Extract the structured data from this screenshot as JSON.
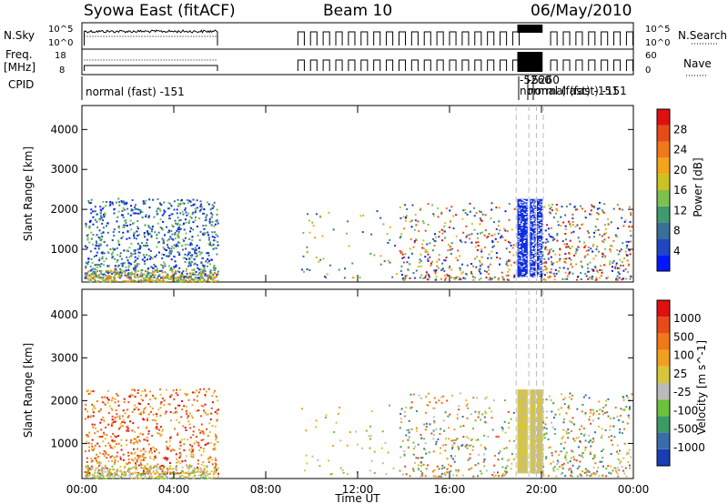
{
  "header": {
    "station": "Syowa East (fitACF)",
    "beam": "Beam 10",
    "date": "06/May/2010"
  },
  "strip": {
    "nsky_label": "N.Sky",
    "nsky_ticks": [
      "10^5",
      "10^0"
    ],
    "nsearch_label": "N.Search",
    "nsearch_ticks": [
      "10^5",
      "10^0"
    ],
    "freq_label_1": "Freq.",
    "freq_label_2": "[MHz]",
    "freq_ticks": [
      "18",
      "8"
    ],
    "nave_label": "Nave",
    "nave_ticks": [
      "60",
      "0"
    ],
    "cpid_label": "CPID",
    "cpid_main": "normal (fast) -151",
    "cpid_overlap_1": "-5260",
    "cpid_overlap_2": "-5260",
    "cpid_overlap_3": "normal (fast) -151",
    "cpid_overlap_4": "normal (fast) -151"
  },
  "chart_data": [
    {
      "type": "heatmap",
      "panel": "power",
      "ylabel": "Slant Range [km]",
      "xlabel": "Time UT",
      "y_ticks": [
        "4000",
        "3000",
        "2000",
        "1000"
      ],
      "x_ticks": [
        "00:00",
        "04:00",
        "08:00",
        "12:00",
        "16:00",
        "20:00",
        "00:00"
      ],
      "ylim": [
        180,
        4600
      ],
      "xlim": [
        0,
        24
      ],
      "colorbar_label": "Power [dB]",
      "colorbar_ticks": [
        "28",
        "24",
        "20",
        "16",
        "12",
        "8",
        "4"
      ],
      "colors": [
        "#0018ff",
        "#1f48c0",
        "#3a6f96",
        "#3f9a70",
        "#7cc04e",
        "#c9c222",
        "#f2a51a",
        "#f07818",
        "#e84a18",
        "#e01010"
      ],
      "scatter_regions": [
        {
          "t0": 0.1,
          "t1": 5.9,
          "r0": 300,
          "r1": 2300,
          "n": 900,
          "ci0": 0,
          "ci1": 4
        },
        {
          "t0": 0.1,
          "t1": 5.9,
          "r0": 200,
          "r1": 500,
          "n": 300,
          "ci0": 3,
          "ci1": 7
        },
        {
          "t0": 13.8,
          "t1": 18.8,
          "r0": 250,
          "r1": 2200,
          "n": 350,
          "ci0": 0,
          "ci1": 9
        },
        {
          "t0": 20.0,
          "t1": 23.9,
          "r0": 250,
          "r1": 2200,
          "n": 350,
          "ci0": 0,
          "ci1": 9
        },
        {
          "t0": 9.5,
          "t1": 13.7,
          "r0": 300,
          "r1": 2000,
          "n": 60,
          "ci0": 1,
          "ci1": 6
        }
      ],
      "dense_blocks": [
        {
          "t0": 18.95,
          "t1": 19.4,
          "r0": 300,
          "r1": 2260
        },
        {
          "t0": 19.5,
          "t1": 19.75,
          "r0": 300,
          "r1": 2260
        },
        {
          "t0": 19.8,
          "t1": 20.05,
          "r0": 300,
          "r1": 2260
        }
      ]
    },
    {
      "type": "heatmap",
      "panel": "velocity",
      "ylabel": "Slant Range [km]",
      "xlabel": "Time UT",
      "y_ticks": [
        "4000",
        "3000",
        "2000",
        "1000"
      ],
      "x_ticks": [
        "00:00",
        "04:00",
        "08:00",
        "12:00",
        "16:00",
        "20:00",
        "00:00"
      ],
      "ylim": [
        180,
        4600
      ],
      "xlim": [
        0,
        24
      ],
      "colorbar_label": "Velocity [m s^-1]",
      "colorbar_ticks": [
        "1000",
        "500",
        "100",
        "25",
        "-25",
        "-100",
        "-500",
        "-1000"
      ],
      "colors": [
        "#1a3cb4",
        "#3a6ca8",
        "#3c9a66",
        "#6cc03c",
        "#bbbbbb",
        "#d8c63a",
        "#f0a020",
        "#f07818",
        "#e84a18",
        "#e01010"
      ],
      "scatter_regions": [
        {
          "t0": 0.1,
          "t1": 5.9,
          "r0": 300,
          "r1": 2300,
          "n": 700,
          "ci0": 5,
          "ci1": 9
        },
        {
          "t0": 0.1,
          "t1": 5.9,
          "r0": 200,
          "r1": 500,
          "n": 250,
          "ci0": 3,
          "ci1": 5
        },
        {
          "t0": 13.8,
          "t1": 18.8,
          "r0": 250,
          "r1": 2200,
          "n": 300,
          "ci0": 1,
          "ci1": 8
        },
        {
          "t0": 20.0,
          "t1": 23.9,
          "r0": 250,
          "r1": 2200,
          "n": 300,
          "ci0": 1,
          "ci1": 8
        },
        {
          "t0": 9.5,
          "t1": 13.7,
          "r0": 300,
          "r1": 2000,
          "n": 50,
          "ci0": 3,
          "ci1": 6
        }
      ],
      "dense_blocks": [
        {
          "t0": 18.95,
          "t1": 19.4,
          "r0": 300,
          "r1": 2260
        },
        {
          "t0": 19.5,
          "t1": 19.75,
          "r0": 300,
          "r1": 2260
        },
        {
          "t0": 19.8,
          "t1": 20.05,
          "r0": 300,
          "r1": 2260
        }
      ]
    }
  ]
}
